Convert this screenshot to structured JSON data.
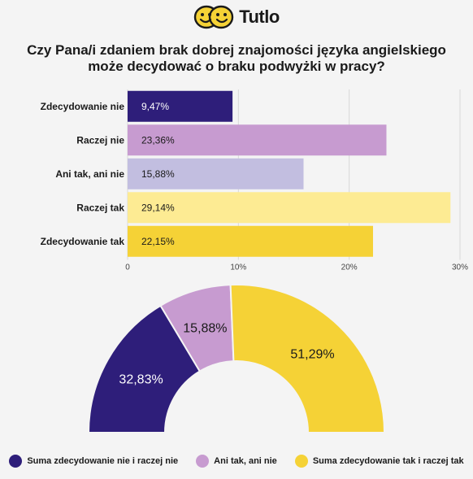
{
  "brand": {
    "name": "Tutlo",
    "logo_color": "#f5d236"
  },
  "title_line1": "Czy Pana/i zdaniem brak dobrej znajomości języka angielskiego",
  "title_line2": "może decydować o braku podwyżki w pracy?",
  "chart_data": [
    {
      "type": "bar",
      "orientation": "horizontal",
      "categories": [
        "Zdecydowanie nie",
        "Raczej nie",
        "Ani tak, ani nie",
        "Raczej tak",
        "Zdecydowanie tak"
      ],
      "values": [
        9.47,
        23.36,
        15.88,
        29.14,
        22.15
      ],
      "value_labels": [
        "9,47%",
        "23,36%",
        "15,88%",
        "29,14%",
        "22,15%"
      ],
      "colors": [
        "#2e1e7a",
        "#c79bd0",
        "#c2bee0",
        "#fdeb93",
        "#f5d236"
      ],
      "x_ticks": [
        0,
        10,
        20,
        30
      ],
      "x_tick_labels": [
        "0",
        "10%",
        "20%",
        "30%"
      ],
      "xlim": [
        0,
        30
      ],
      "grid": true
    },
    {
      "type": "pie",
      "variant": "half-donut",
      "labels": [
        "Suma zdecydowanie nie i raczej nie",
        "Ani tak, ani nie",
        "Suma zdecydowanie tak i raczej tak"
      ],
      "values": [
        32.83,
        15.88,
        51.29
      ],
      "value_labels": [
        "32,83%",
        "15,88%",
        "51,29%"
      ],
      "colors": [
        "#2e1e7a",
        "#c79bd0",
        "#f5d236"
      ],
      "label_colors": [
        "#ffffff",
        "#1a1a1a",
        "#1a1a1a"
      ],
      "legend_position": "bottom"
    }
  ]
}
